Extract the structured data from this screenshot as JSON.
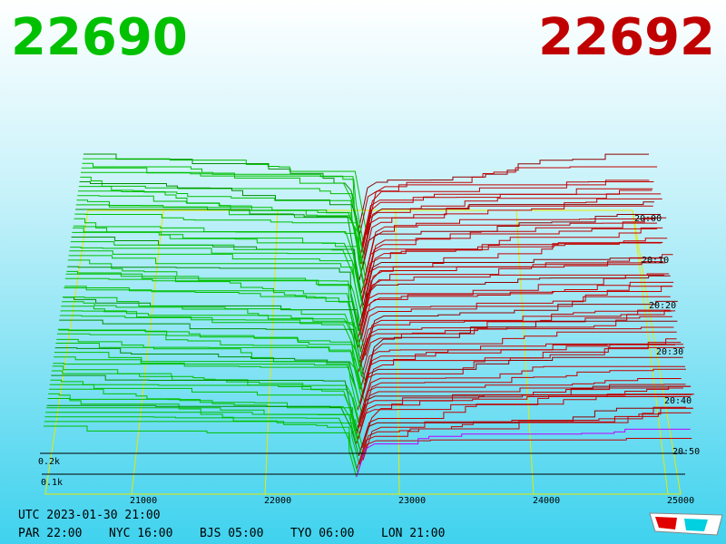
{
  "header": {
    "bid": "22690",
    "ask": "22692"
  },
  "price_axis": {
    "ticks": [
      "21000",
      "22000",
      "23000",
      "24000",
      "25000"
    ]
  },
  "depth_axis": {
    "ticks": [
      "0.2k",
      "0.1k"
    ]
  },
  "time_axis": {
    "ticks": [
      "20:00",
      "20:10",
      "20:20",
      "20:30",
      "20:40",
      "20:50"
    ]
  },
  "footer": {
    "utc": "UTC 2023-01-30 21:00",
    "zones": [
      "PAR 22:00",
      "NYC 16:00",
      "BJS 05:00",
      "TYO 06:00",
      "LON 21:00"
    ]
  }
}
